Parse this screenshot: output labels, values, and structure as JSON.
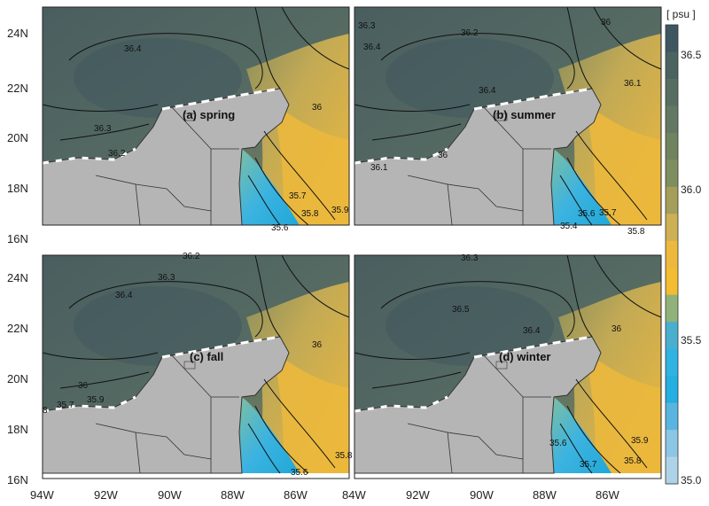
{
  "panels": [
    {
      "label": "(a) spring",
      "contours": [
        "36.4",
        "36.3",
        "36.2",
        "36",
        "35.9",
        "35.8",
        "35.7",
        "35.6"
      ]
    },
    {
      "label": "(b) summer",
      "contours": [
        "36.3",
        "36.2",
        "36.4",
        "36.4",
        "36.1",
        "36",
        "36.1",
        "36",
        "35.7",
        "35.6",
        "35.4",
        "35.8"
      ]
    },
    {
      "label": "(c) fall",
      "contours": [
        "36.2",
        "36.3",
        "36.4",
        "36",
        "35.9",
        "35.7",
        "8",
        "36",
        "35.8",
        "35.6"
      ]
    },
    {
      "label": "(d) winter",
      "contours": [
        "36.3",
        "36.5",
        "36.4",
        "36",
        "35.9",
        "35.8",
        "35.6",
        "35.7"
      ]
    }
  ],
  "axes": {
    "lat_ticks": [
      "24N",
      "22N",
      "20N",
      "18N",
      "16N"
    ],
    "lon_ticks": [
      "94W",
      "92W",
      "90W",
      "88W",
      "86W",
      "84W"
    ]
  },
  "colorbar": {
    "unit_label": "[ psu ]",
    "tick_labels": [
      "36.5",
      "36.0",
      "35.5",
      "35.0"
    ],
    "colors": [
      "#3e5660",
      "#4a6260",
      "#566d62",
      "#637862",
      "#708360",
      "#7f8e5e",
      "#a59e5a",
      "#cdb053",
      "#ecb93c",
      "#f3bc32",
      "#90b27a",
      "#4aafcf",
      "#2eb3e2",
      "#25aee0",
      "#58b5df",
      "#8bc6e4",
      "#aed3e8"
    ]
  },
  "colors": {
    "land": "#b5b5b5",
    "high_salinity": "#45595d",
    "mid_salinity": "#8b8e5b",
    "low_salinity": "#ecb83c",
    "fresh": "#3cb3e0"
  }
}
